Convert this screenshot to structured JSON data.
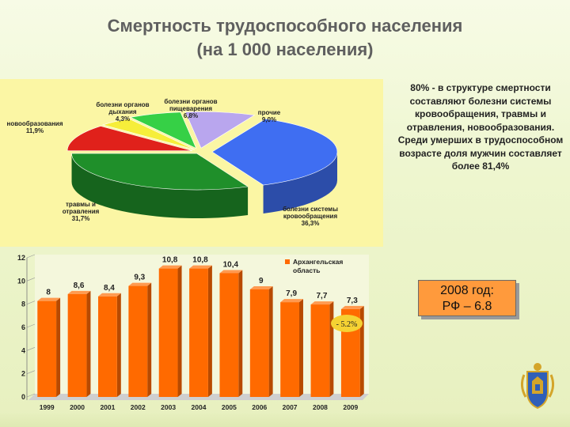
{
  "title_line1": "Смертность трудоспособного населения",
  "title_line2": "(на 1 000 населения)",
  "note": "80% - в структуре смертности составляют болезни системы кровообращения, травмы и отравления, новообразования. Среди умерших в трудоспособном возрасте доля мужчин составляет более 81,4%",
  "info_box": {
    "line1": "2008 год:",
    "line2": "РФ – 6.8"
  },
  "colors": {
    "bars": "#ff6a00",
    "pie_blue": "#3f6ef2",
    "pie_green": "#1f8f2a",
    "pie_red": "#e0211b",
    "pie_yellow": "#f6ee3a",
    "pie_lightgreen": "#36d046",
    "pie_violet": "#b9a6ee",
    "panel_yellow": "#fbf6a4"
  },
  "chart_data": [
    {
      "type": "pie",
      "slices": [
        {
          "label": "болезни системы кровообращения",
          "value_label": "36,3%",
          "value": 36.3,
          "color": "#3f6ef2"
        },
        {
          "label": "травмы и отравления",
          "value_label": "31,7%",
          "value": 31.7,
          "color": "#1f8f2a"
        },
        {
          "label": "новообразования",
          "value_label": "11,9%",
          "value": 11.9,
          "color": "#e0211b"
        },
        {
          "label": "болезни органов дыхания",
          "value_label": "4,3%",
          "value": 4.3,
          "color": "#f6ee3a"
        },
        {
          "label": "болезни органов пищеварения",
          "value_label": "6,8%",
          "value": 6.8,
          "color": "#36d046"
        },
        {
          "label": "прочие",
          "value_label": "9,0%",
          "value": 9.0,
          "color": "#b9a6ee"
        }
      ]
    },
    {
      "type": "bar",
      "categories": [
        "1999",
        "2000",
        "2001",
        "2002",
        "2003",
        "2004",
        "2005",
        "2006",
        "2007",
        "2008",
        "2009"
      ],
      "values": [
        8,
        8.6,
        8.4,
        9.3,
        10.8,
        10.8,
        10.4,
        9,
        7.9,
        7.7,
        7.3
      ],
      "value_labels": [
        "8",
        "8,6",
        "8,4",
        "9,3",
        "10,8",
        "10,8",
        "10,4",
        "9",
        "7,9",
        "7,7",
        "7,3"
      ],
      "series": [
        {
          "name": "Архангельская область",
          "values": [
            8,
            8.6,
            8.4,
            9.3,
            10.8,
            10.8,
            10.4,
            9,
            7.9,
            7.7,
            7.3
          ]
        }
      ],
      "yticks": [
        "0",
        "2",
        "4",
        "6",
        "8",
        "10",
        "12"
      ],
      "ylim": [
        0,
        12
      ],
      "annotation": "- 5.2%",
      "legend": "top-right"
    }
  ]
}
